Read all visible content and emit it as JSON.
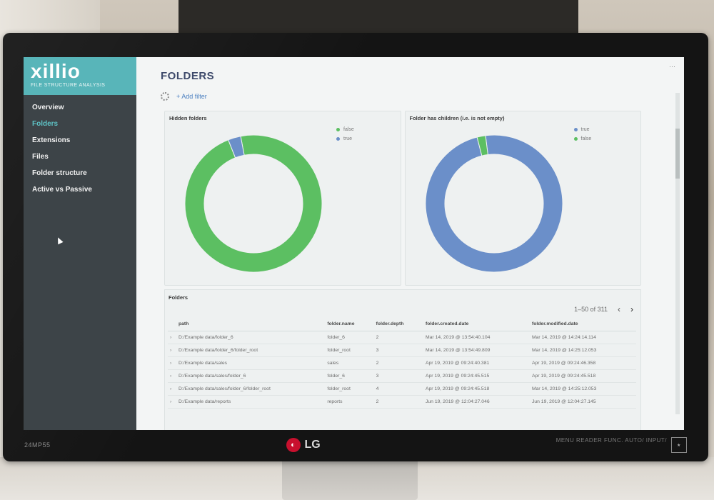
{
  "app": {
    "logo": "xillio",
    "logo_subtitle": "FILE STRUCTURE ANALYSIS"
  },
  "sidebar": {
    "items": [
      {
        "label": "Overview",
        "active": false
      },
      {
        "label": "Folders",
        "active": true
      },
      {
        "label": "Extensions",
        "active": false
      },
      {
        "label": "Files",
        "active": false
      },
      {
        "label": "Folder structure",
        "active": false
      },
      {
        "label": "Active vs Passive",
        "active": false
      }
    ]
  },
  "main": {
    "title": "FOLDERS",
    "filter_label": "+ Add filter"
  },
  "charts": {
    "hidden": {
      "title": "Hidden folders",
      "legend": [
        {
          "label": "false",
          "color": "#5cbf62"
        },
        {
          "label": "true",
          "color": "#6b8fc9"
        }
      ]
    },
    "children": {
      "title": "Folder has children (i.e. is not empty)",
      "legend": [
        {
          "label": "true",
          "color": "#6b8fc9"
        },
        {
          "label": "false",
          "color": "#5cbf62"
        }
      ]
    }
  },
  "chart_data": [
    {
      "type": "pie",
      "title": "Hidden folders",
      "series": [
        {
          "name": "false",
          "value": 97
        },
        {
          "name": "true",
          "value": 3
        }
      ],
      "colors": [
        "#5cbf62",
        "#6b8fc9"
      ]
    },
    {
      "type": "pie",
      "title": "Folder has children (i.e. is not empty)",
      "series": [
        {
          "name": "true",
          "value": 98
        },
        {
          "name": "false",
          "value": 2
        }
      ],
      "colors": [
        "#6b8fc9",
        "#5cbf62"
      ]
    }
  ],
  "table": {
    "title": "Folders",
    "pagination": "1–50 of 311",
    "columns": [
      "path",
      "folder.name",
      "folder.depth",
      "folder.created.date",
      "folder.modified.date"
    ],
    "rows": [
      [
        "D:/Example data/folder_6",
        "folder_6",
        "2",
        "Mar 14, 2019 @ 13:54:40.104",
        "Mar 14, 2019 @ 14:24:14.114"
      ],
      [
        "D:/Example data/folder_6/folder_root",
        "folder_root",
        "3",
        "Mar 14, 2019 @ 13:54:49.809",
        "Mar 14, 2019 @ 14:25:12.053"
      ],
      [
        "D:/Example data/sales",
        "sales",
        "2",
        "Apr 19, 2019 @ 09:24:40.381",
        "Apr 19, 2019 @ 09:24:46.358"
      ],
      [
        "D:/Example data/sales/folder_6",
        "folder_6",
        "3",
        "Apr 19, 2019 @ 09:24:45.515",
        "Apr 19, 2019 @ 09:24:45.518"
      ],
      [
        "D:/Example data/sales/folder_6/folder_root",
        "folder_root",
        "4",
        "Apr 19, 2019 @ 09:24:45.518",
        "Mar 14, 2019 @ 14:25:12.053"
      ],
      [
        "D:/Example data/reports",
        "reports",
        "2",
        "Jun 19, 2019 @ 12:04:27.046",
        "Jun 19, 2019 @ 12:04:27.145"
      ]
    ]
  },
  "monitor": {
    "brand": "LG",
    "model": "24MP55",
    "controls": "MENU  READER  FUNC.  AUTO/  INPUT/"
  }
}
